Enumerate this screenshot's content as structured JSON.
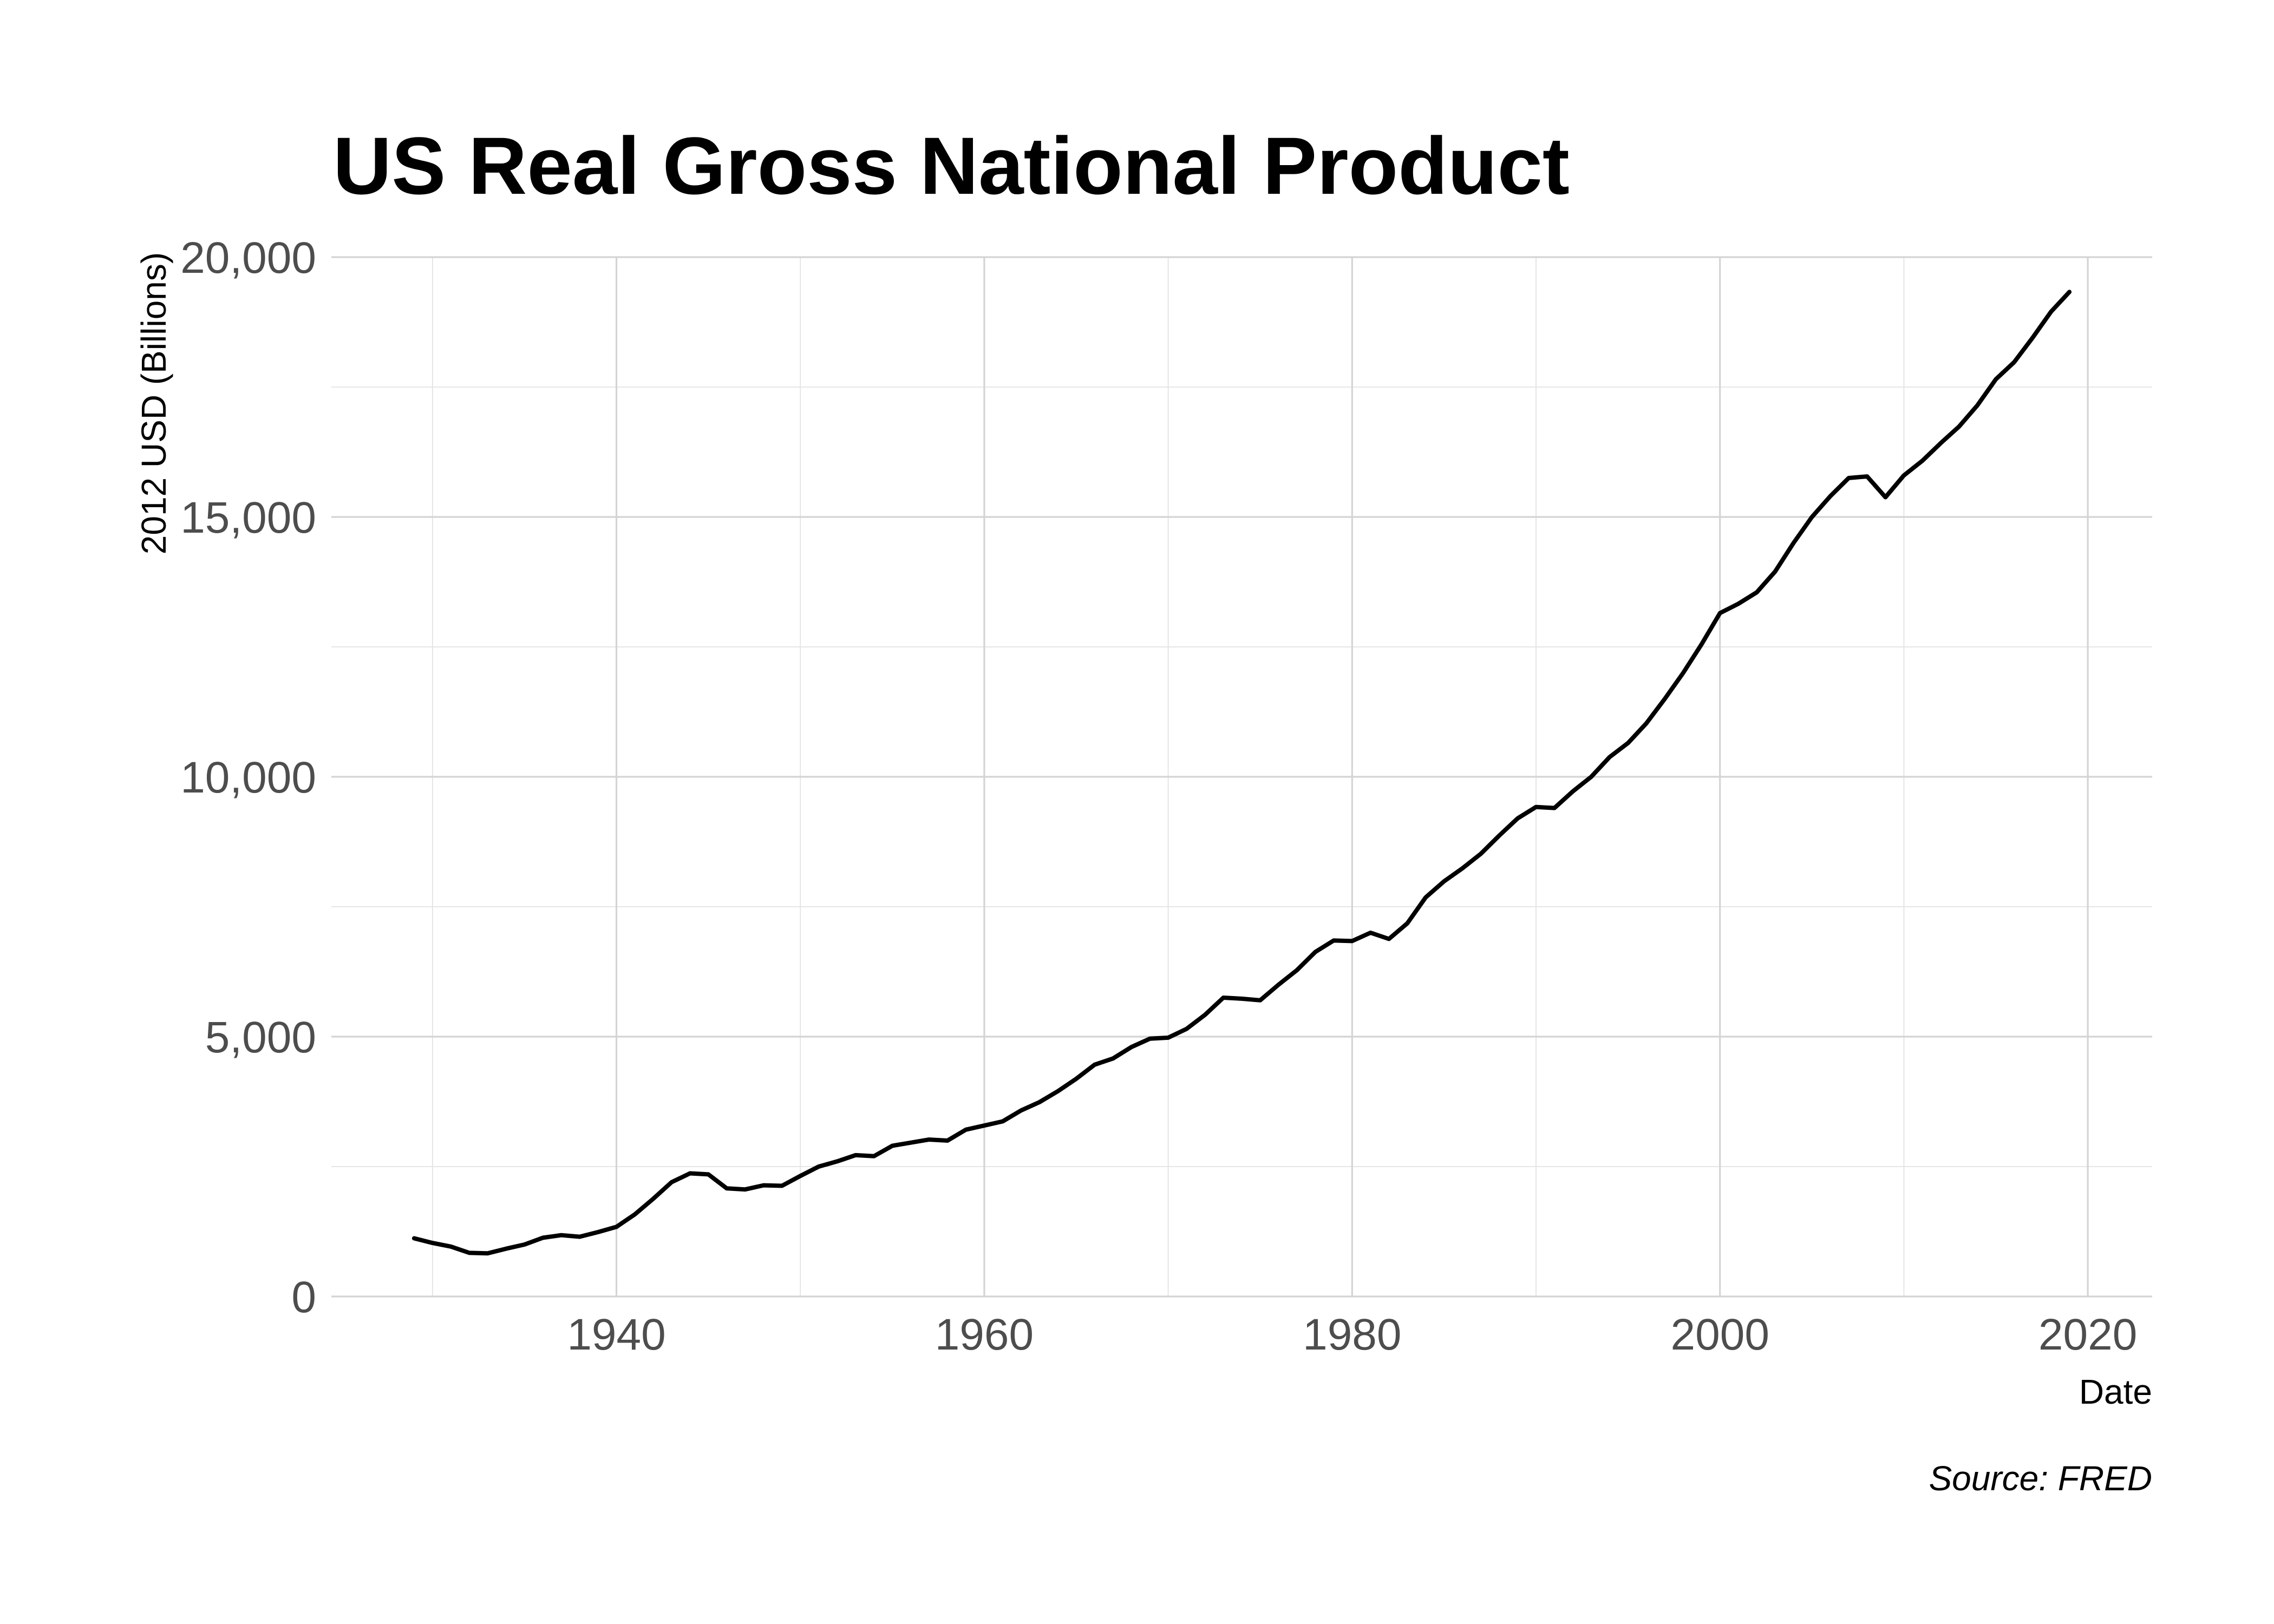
{
  "chart_data": {
    "type": "line",
    "title": "US Real Gross National Product",
    "xlabel": "Date",
    "ylabel": "2012 USD (Billions)",
    "caption": "Source: FRED",
    "xlim": [
      1924.5,
      2023.5
    ],
    "ylim": [
      0,
      20000
    ],
    "x_ticks": [
      1940,
      1960,
      1980,
      2000,
      2020
    ],
    "x_tick_labels": [
      "1940",
      "1960",
      "1980",
      "2000",
      "2020"
    ],
    "y_ticks": [
      0,
      5000,
      10000,
      15000,
      20000
    ],
    "y_tick_labels": [
      "0",
      "5,000",
      "10,000",
      "15,000",
      "20,000"
    ],
    "grid": true,
    "legend": "none",
    "colors": {
      "line": "#000000",
      "grid": "#d4d4d4",
      "ticks": "#4d4d4d"
    },
    "series": [
      {
        "x": [
          1929,
          1930,
          1931,
          1932,
          1933,
          1934,
          1935,
          1936,
          1937,
          1938,
          1939,
          1940,
          1941,
          1942,
          1943,
          1944,
          1945,
          1946,
          1947,
          1948,
          1949,
          1950,
          1951,
          1952,
          1953,
          1954,
          1955,
          1956,
          1957,
          1958,
          1959,
          1960,
          1961,
          1962,
          1963,
          1964,
          1965,
          1966,
          1967,
          1968,
          1969,
          1970,
          1971,
          1972,
          1973,
          1974,
          1975,
          1976,
          1977,
          1978,
          1979,
          1980,
          1981,
          1982,
          1983,
          1984,
          1985,
          1986,
          1987,
          1988,
          1989,
          1990,
          1991,
          1992,
          1993,
          1994,
          1995,
          1996,
          1997,
          1998,
          1999,
          2000,
          2001,
          2002,
          2003,
          2004,
          2005,
          2006,
          2007,
          2008,
          2009,
          2010,
          2011,
          2012,
          2013,
          2014,
          2015,
          2016,
          2017,
          2018,
          2019
        ],
        "values": [
          1120,
          1030,
          960,
          840,
          830,
          920,
          1000,
          1130,
          1180,
          1150,
          1240,
          1340,
          1580,
          1880,
          2200,
          2370,
          2350,
          2080,
          2060,
          2140,
          2130,
          2320,
          2500,
          2600,
          2720,
          2700,
          2900,
          2960,
          3020,
          3000,
          3210,
          3290,
          3370,
          3580,
          3740,
          3950,
          4190,
          4460,
          4580,
          4800,
          4960,
          4980,
          5150,
          5420,
          5750,
          5730,
          5700,
          6000,
          6280,
          6630,
          6850,
          6840,
          7000,
          6880,
          7180,
          7680,
          7990,
          8240,
          8520,
          8870,
          9200,
          9420,
          9400,
          9720,
          10000,
          10380,
          10650,
          11030,
          11500,
          12000,
          12550,
          13150,
          13330,
          13550,
          13950,
          14500,
          15000,
          15400,
          15750,
          15780,
          15380,
          15800,
          16080,
          16420,
          16740,
          17150,
          17650,
          17980,
          18450,
          18950,
          19330
        ]
      }
    ]
  }
}
